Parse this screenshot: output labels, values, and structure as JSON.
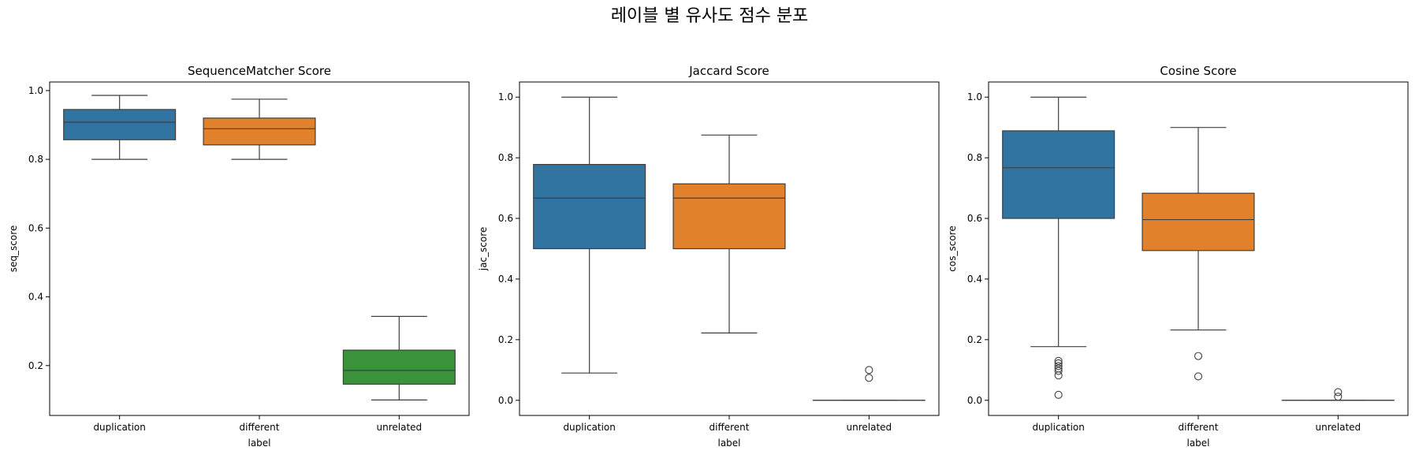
{
  "figure_title": "레이블 별 유사도 점수 분포",
  "chart_data": [
    {
      "type": "box",
      "title": "SequenceMatcher Score",
      "xlabel": "label",
      "ylabel": "seq_score",
      "categories": [
        "duplication",
        "different",
        "unrelated"
      ],
      "ylim": [
        0.055,
        1.025
      ],
      "yticks": [
        0.2,
        0.4,
        0.6,
        0.8,
        1.0
      ],
      "ytick_labels": [
        "0.2",
        "0.4",
        "0.6",
        "0.8",
        "1.0"
      ],
      "colors": [
        "#3274a1",
        "#e1812c",
        "#3a923a"
      ],
      "boxes": [
        {
          "whislo": 0.8,
          "q1": 0.857,
          "med": 0.908,
          "q3": 0.945,
          "whishi": 0.986,
          "fliers": []
        },
        {
          "whislo": 0.8,
          "q1": 0.842,
          "med": 0.889,
          "q3": 0.92,
          "whishi": 0.975,
          "fliers": []
        },
        {
          "whislo": 0.1,
          "q1": 0.146,
          "med": 0.186,
          "q3": 0.245,
          "whishi": 0.343,
          "fliers": []
        }
      ]
    },
    {
      "type": "box",
      "title": "Jaccard Score",
      "xlabel": "label",
      "ylabel": "jac_score",
      "categories": [
        "duplication",
        "different",
        "unrelated"
      ],
      "ylim": [
        -0.05,
        1.05
      ],
      "yticks": [
        0.0,
        0.2,
        0.4,
        0.6,
        0.8,
        1.0
      ],
      "ytick_labels": [
        "0.0",
        "0.2",
        "0.4",
        "0.6",
        "0.8",
        "1.0"
      ],
      "colors": [
        "#3274a1",
        "#e1812c",
        "#3a923a"
      ],
      "boxes": [
        {
          "whislo": 0.09,
          "q1": 0.5,
          "med": 0.667,
          "q3": 0.778,
          "whishi": 1.0,
          "fliers": []
        },
        {
          "whislo": 0.222,
          "q1": 0.5,
          "med": 0.667,
          "q3": 0.714,
          "whishi": 0.875,
          "fliers": []
        },
        {
          "whislo": 0.0,
          "q1": 0.0,
          "med": 0.0,
          "q3": 0.0,
          "whishi": 0.0,
          "fliers": [
            0.1,
            0.074
          ]
        }
      ]
    },
    {
      "type": "box",
      "title": "Cosine Score",
      "xlabel": "label",
      "ylabel": "cos_score",
      "categories": [
        "duplication",
        "different",
        "unrelated"
      ],
      "ylim": [
        -0.05,
        1.05
      ],
      "yticks": [
        0.0,
        0.2,
        0.4,
        0.6,
        0.8,
        1.0
      ],
      "ytick_labels": [
        "0.0",
        "0.2",
        "0.4",
        "0.6",
        "0.8",
        "1.0"
      ],
      "colors": [
        "#3274a1",
        "#e1812c",
        "#3a923a"
      ],
      "boxes": [
        {
          "whislo": 0.177,
          "q1": 0.6,
          "med": 0.767,
          "q3": 0.889,
          "whishi": 1.0,
          "fliers": [
            0.13,
            0.122,
            0.113,
            0.105,
            0.097,
            0.082,
            0.018
          ]
        },
        {
          "whislo": 0.232,
          "q1": 0.494,
          "med": 0.596,
          "q3": 0.683,
          "whishi": 0.9,
          "fliers": [
            0.146,
            0.079
          ]
        },
        {
          "whislo": 0.0,
          "q1": 0.0,
          "med": 0.0,
          "q3": 0.0,
          "whishi": 0.0,
          "fliers": [
            0.027,
            0.012
          ]
        }
      ]
    }
  ]
}
